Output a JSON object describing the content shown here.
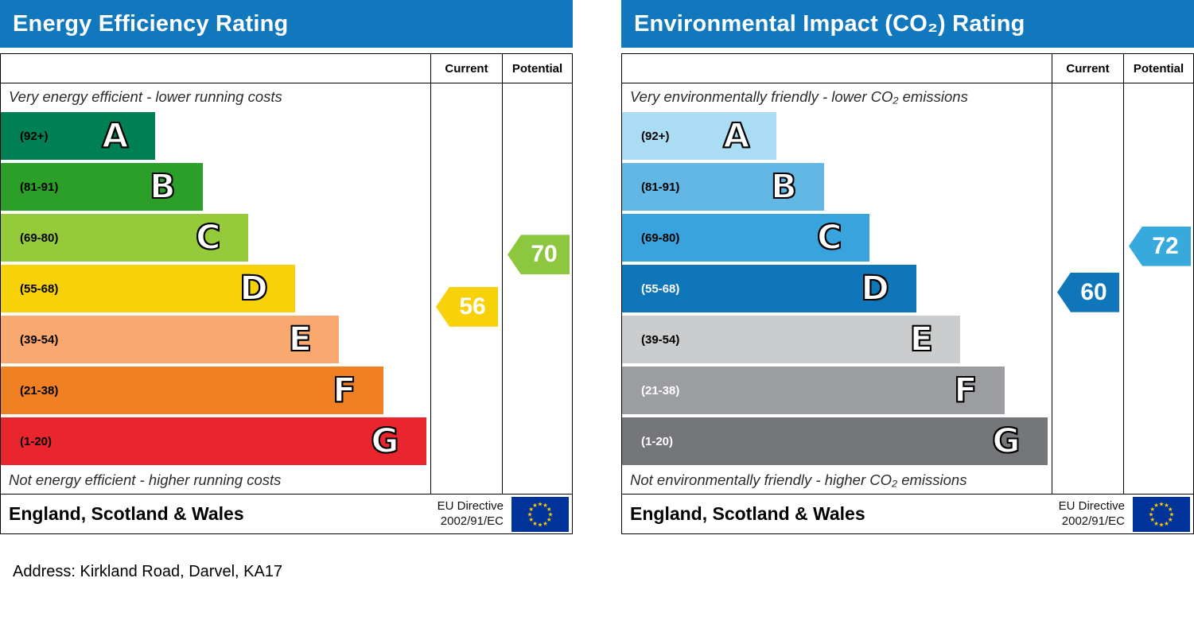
{
  "page": {
    "address_line": "Address: Kirkland Road, Darvel, KA17"
  },
  "chart_data": [
    {
      "type": "bar",
      "chart_kind": "epc-energy-efficiency",
      "title": "Energy Efficiency Rating",
      "column_headers": [
        "Current",
        "Potential"
      ],
      "top_note": "Very energy efficient - lower running costs",
      "bottom_note": "Not energy efficient - higher running costs",
      "footer_region": "England, Scotland & Wales",
      "eu_directive_line1": "EU Directive",
      "eu_directive_line2": "2002/91/EC",
      "header_color": "#1278be",
      "scale": [
        1,
        100
      ],
      "bands": [
        {
          "letter": "A",
          "range_label": "(92+)",
          "min": 92,
          "max": 100,
          "color": "#008054",
          "label_color": "#000000",
          "width_pct": 36
        },
        {
          "letter": "B",
          "range_label": "(81-91)",
          "min": 81,
          "max": 91,
          "color": "#2c9f29",
          "label_color": "#000000",
          "width_pct": 47
        },
        {
          "letter": "C",
          "range_label": "(69-80)",
          "min": 69,
          "max": 80,
          "color": "#95ca3b",
          "label_color": "#000000",
          "width_pct": 57.5
        },
        {
          "letter": "D",
          "range_label": "(55-68)",
          "min": 55,
          "max": 68,
          "color": "#f7d10a",
          "label_color": "#000000",
          "width_pct": 68.5
        },
        {
          "letter": "E",
          "range_label": "(39-54)",
          "min": 39,
          "max": 54,
          "color": "#f9a870",
          "label_color": "#000000",
          "width_pct": 78.7
        },
        {
          "letter": "F",
          "range_label": "(21-38)",
          "min": 21,
          "max": 38,
          "color": "#ef8023",
          "label_color": "#000000",
          "width_pct": 89
        },
        {
          "letter": "G",
          "range_label": "(1-20)",
          "min": 1,
          "max": 20,
          "color": "#e9262d",
          "label_color": "#000000",
          "width_pct": 99
        }
      ],
      "current": {
        "value": 56,
        "band": "D",
        "arrow_color": "#f7d10a"
      },
      "potential": {
        "value": 70,
        "band": "C",
        "arrow_color": "#8dc63f"
      }
    },
    {
      "type": "bar",
      "chart_kind": "epc-environmental-impact-co2",
      "title": "Environmental Impact (CO₂) Rating",
      "column_headers": [
        "Current",
        "Potential"
      ],
      "top_note": "Very environmentally friendly - lower CO₂ emissions",
      "bottom_note": "Not environmentally friendly - higher CO₂ emissions",
      "footer_region": "England, Scotland & Wales",
      "eu_directive_line1": "EU Directive",
      "eu_directive_line2": "2002/91/EC",
      "header_color": "#1278be",
      "scale": [
        1,
        100
      ],
      "bands": [
        {
          "letter": "A",
          "range_label": "(92+)",
          "min": 92,
          "max": 100,
          "color": "#aadcf4",
          "label_color": "#000000",
          "width_pct": 36
        },
        {
          "letter": "B",
          "range_label": "(81-91)",
          "min": 81,
          "max": 91,
          "color": "#63b7e5",
          "label_color": "#000000",
          "width_pct": 47
        },
        {
          "letter": "C",
          "range_label": "(69-80)",
          "min": 69,
          "max": 80,
          "color": "#38a3dc",
          "label_color": "#000000",
          "width_pct": 57.5
        },
        {
          "letter": "D",
          "range_label": "(55-68)",
          "min": 55,
          "max": 68,
          "color": "#0e76b9",
          "label_color": "#ffffff",
          "width_pct": 68.5
        },
        {
          "letter": "E",
          "range_label": "(39-54)",
          "min": 39,
          "max": 54,
          "color": "#cbccce",
          "label_color": "#000000",
          "width_pct": 78.7
        },
        {
          "letter": "F",
          "range_label": "(21-38)",
          "min": 21,
          "max": 38,
          "color": "#9b9da0",
          "label_color": "#ffffff",
          "width_pct": 89
        },
        {
          "letter": "G",
          "range_label": "(1-20)",
          "min": 1,
          "max": 20,
          "color": "#747679",
          "label_color": "#ffffff",
          "width_pct": 99
        }
      ],
      "current": {
        "value": 60,
        "band": "D",
        "arrow_color": "#0e76b9"
      },
      "potential": {
        "value": 72,
        "band": "C",
        "arrow_color": "#38a9dd"
      }
    }
  ]
}
